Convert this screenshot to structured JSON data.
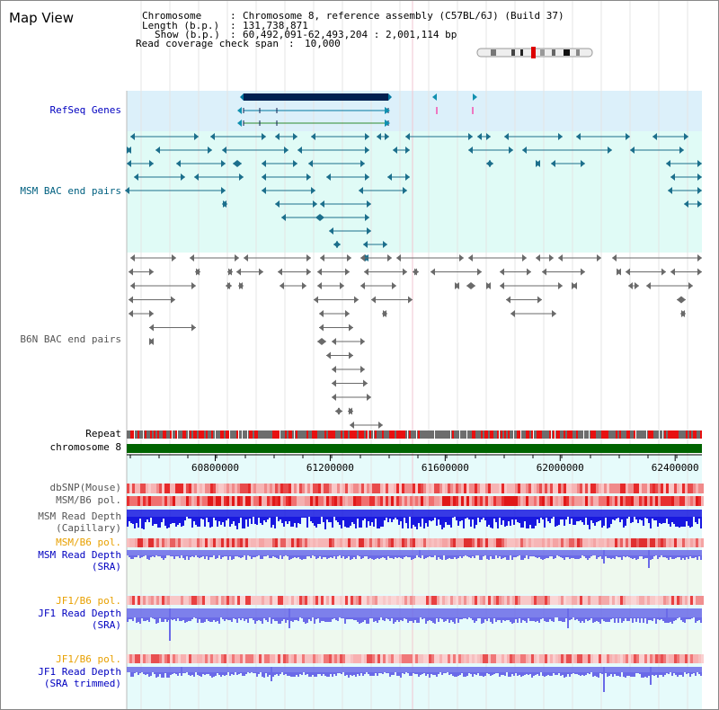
{
  "page": {
    "title": "Map View"
  },
  "header": {
    "rows": [
      {
        "key": "Chromosome",
        "sep": ":",
        "value": "Chromosome 8, reference assembly (C57BL/6J) (Build 37)"
      },
      {
        "key": "Length (b.p.)",
        "sep": ":",
        "value": "131,738,871"
      },
      {
        "key": "Show (b.p.)",
        "sep": ":",
        "value": "60,492,091-62,493,204 : 2,001,114 bp"
      },
      {
        "key": "Read coverage check span",
        "sep": ":",
        "value": "10,000"
      }
    ]
  },
  "tracks": {
    "refseq": "RefSeq Genes",
    "msm_bac": "MSM BAC end pairs",
    "b6n_bac": "B6N BAC end pairs",
    "repeat": "Repeat",
    "chromosome": "chromosome 8",
    "dbsnp": "dbSNP(Mouse)",
    "msm_b6_pol": "MSM/B6 pol.",
    "msm_depth_cap_1": "MSM Read Depth",
    "msm_depth_cap_2": "(Capillary)",
    "msm_b6_pol2": "MSM/B6 pol.",
    "msm_depth_sra_1": "MSM Read Depth",
    "msm_depth_sra_2": "(SRA)",
    "jf1_b6_pol": "JF1/B6 pol.",
    "jf1_depth_sra_1": "JF1 Read Depth",
    "jf1_depth_sra_2": "(SRA)",
    "jf1_b6_pol2": "JF1/B6 pol.",
    "jf1_depth_trim_1": "JF1 Read Depth",
    "jf1_depth_trim_2": "(SRA trimmed)"
  },
  "axis": {
    "start": 60492091,
    "end": 62493204,
    "ticks": [
      "60800000",
      "61200000",
      "61600000",
      "62000000",
      "62400000"
    ]
  },
  "colors": {
    "refseq_bg": "#dcf0fa",
    "msm_bg": "#e0fbf6",
    "refseq_label": "#0000c0",
    "msm_label": "#006080",
    "pol_label": "#e8a000",
    "sra_label": "#0000c0",
    "chromosome_bar": "#006400",
    "gene": "#002050",
    "depth_cap": "#1818e0",
    "depth_sra": "#6a6ae8"
  }
}
